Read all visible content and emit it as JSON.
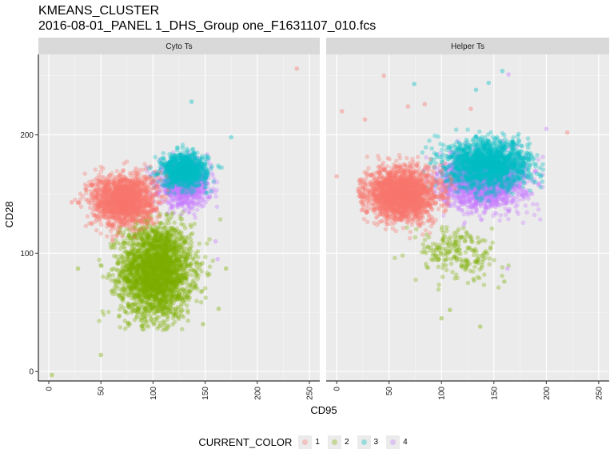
{
  "header": {
    "title_line1": "KMEANS_CLUSTER",
    "title_line2": "2016-08-01_PANEL 1_DHS_Group one_F1631107_010.fcs"
  },
  "chart_data": {
    "type": "scatter",
    "xlabel": "CD95",
    "ylabel": "CD28",
    "xlim": [
      -10,
      260
    ],
    "ylim": [
      -8,
      268
    ],
    "x_ticks": [
      0,
      50,
      100,
      150,
      200,
      250
    ],
    "x_tick_labels": [
      "0",
      "50",
      "100",
      "150",
      "200",
      "250"
    ],
    "y_ticks": [
      0,
      100,
      200
    ],
    "y_tick_labels": [
      "0",
      "100",
      "200"
    ],
    "grid": true,
    "legend_title": "CURRENT_COLOR",
    "legend_position": "bottom",
    "series_colors": {
      "1": "#F8766D",
      "2": "#7CAE00",
      "3": "#00BFC4",
      "4": "#C77CFF"
    },
    "legend_entries": [
      {
        "key": "1",
        "label": "1",
        "color": "#F8766D"
      },
      {
        "key": "2",
        "label": "2",
        "color": "#7CAE00"
      },
      {
        "key": "3",
        "label": "3",
        "color": "#00BFC4"
      },
      {
        "key": "4",
        "label": "4",
        "color": "#C77CFF"
      }
    ],
    "facets": [
      {
        "label": "Cyto Ts",
        "clusters": [
          {
            "key": "1",
            "center": [
              72,
              145
            ],
            "spread": [
              15,
              11
            ],
            "n": 1600,
            "xr": [
              25,
              115
            ],
            "yr": [
              110,
              178
            ]
          },
          {
            "key": "2",
            "center": [
              103,
              85
            ],
            "spread": [
              17,
              20
            ],
            "n": 2600,
            "xr": [
              40,
              170
            ],
            "yr": [
              35,
              135
            ]
          },
          {
            "key": "3",
            "center": [
              130,
              170
            ],
            "spread": [
              11,
              7
            ],
            "n": 900,
            "xr": [
              95,
              175
            ],
            "yr": [
              150,
              198
            ]
          },
          {
            "key": "4",
            "center": [
              130,
              158
            ],
            "spread": [
              12,
              9
            ],
            "n": 1000,
            "xr": [
              90,
              178
            ],
            "yr": [
              130,
              185
            ]
          }
        ],
        "outliers": [
          {
            "key": "2",
            "x": 3,
            "y": -3
          },
          {
            "key": "2",
            "x": 50,
            "y": 14
          },
          {
            "key": "2",
            "x": 28,
            "y": 87
          },
          {
            "key": "2",
            "x": 170,
            "y": 87
          },
          {
            "key": "2",
            "x": 148,
            "y": 40
          },
          {
            "key": "2",
            "x": 163,
            "y": 53
          },
          {
            "key": "3",
            "x": 137,
            "y": 228
          },
          {
            "key": "3",
            "x": 175,
            "y": 198
          },
          {
            "key": "1",
            "x": 238,
            "y": 256
          },
          {
            "key": "1",
            "x": 22,
            "y": 143
          },
          {
            "key": "4",
            "x": 160,
            "y": 110
          },
          {
            "key": "4",
            "x": 162,
            "y": 95
          }
        ]
      },
      {
        "label": "Helper Ts",
        "clusters": [
          {
            "key": "1",
            "center": [
              62,
              150
            ],
            "spread": [
              17,
              11
            ],
            "n": 2000,
            "xr": [
              20,
              125
            ],
            "yr": [
              110,
              185
            ]
          },
          {
            "key": "2",
            "center": [
              115,
              100
            ],
            "spread": [
              20,
              12
            ],
            "n": 220,
            "xr": [
              50,
              165
            ],
            "yr": [
              60,
              125
            ]
          },
          {
            "key": "3",
            "center": [
              145,
              175
            ],
            "spread": [
              20,
              10
            ],
            "n": 1700,
            "xr": [
              70,
              200
            ],
            "yr": [
              140,
              205
            ]
          },
          {
            "key": "4",
            "center": [
              140,
              160
            ],
            "spread": [
              20,
              11
            ],
            "n": 1700,
            "xr": [
              70,
              200
            ],
            "yr": [
              115,
              195
            ]
          }
        ],
        "outliers": [
          {
            "key": "2",
            "x": 100,
            "y": 45
          },
          {
            "key": "2",
            "x": 137,
            "y": 38
          },
          {
            "key": "2",
            "x": 108,
            "y": 52
          },
          {
            "key": "2",
            "x": 160,
            "y": 76
          },
          {
            "key": "1",
            "x": 5,
            "y": 220
          },
          {
            "key": "1",
            "x": 45,
            "y": 250
          },
          {
            "key": "1",
            "x": 68,
            "y": 224
          },
          {
            "key": "1",
            "x": 220,
            "y": 202
          },
          {
            "key": "1",
            "x": 0,
            "y": 165
          },
          {
            "key": "1",
            "x": 27,
            "y": 213
          },
          {
            "key": "1",
            "x": 84,
            "y": 226
          },
          {
            "key": "1",
            "x": 128,
            "y": 222
          },
          {
            "key": "3",
            "x": 74,
            "y": 243
          },
          {
            "key": "3",
            "x": 158,
            "y": 254
          },
          {
            "key": "3",
            "x": 145,
            "y": 244
          },
          {
            "key": "3",
            "x": 133,
            "y": 238
          },
          {
            "key": "4",
            "x": 164,
            "y": 251
          },
          {
            "key": "4",
            "x": 163,
            "y": 87
          },
          {
            "key": "4",
            "x": 200,
            "y": 205
          }
        ]
      }
    ]
  }
}
